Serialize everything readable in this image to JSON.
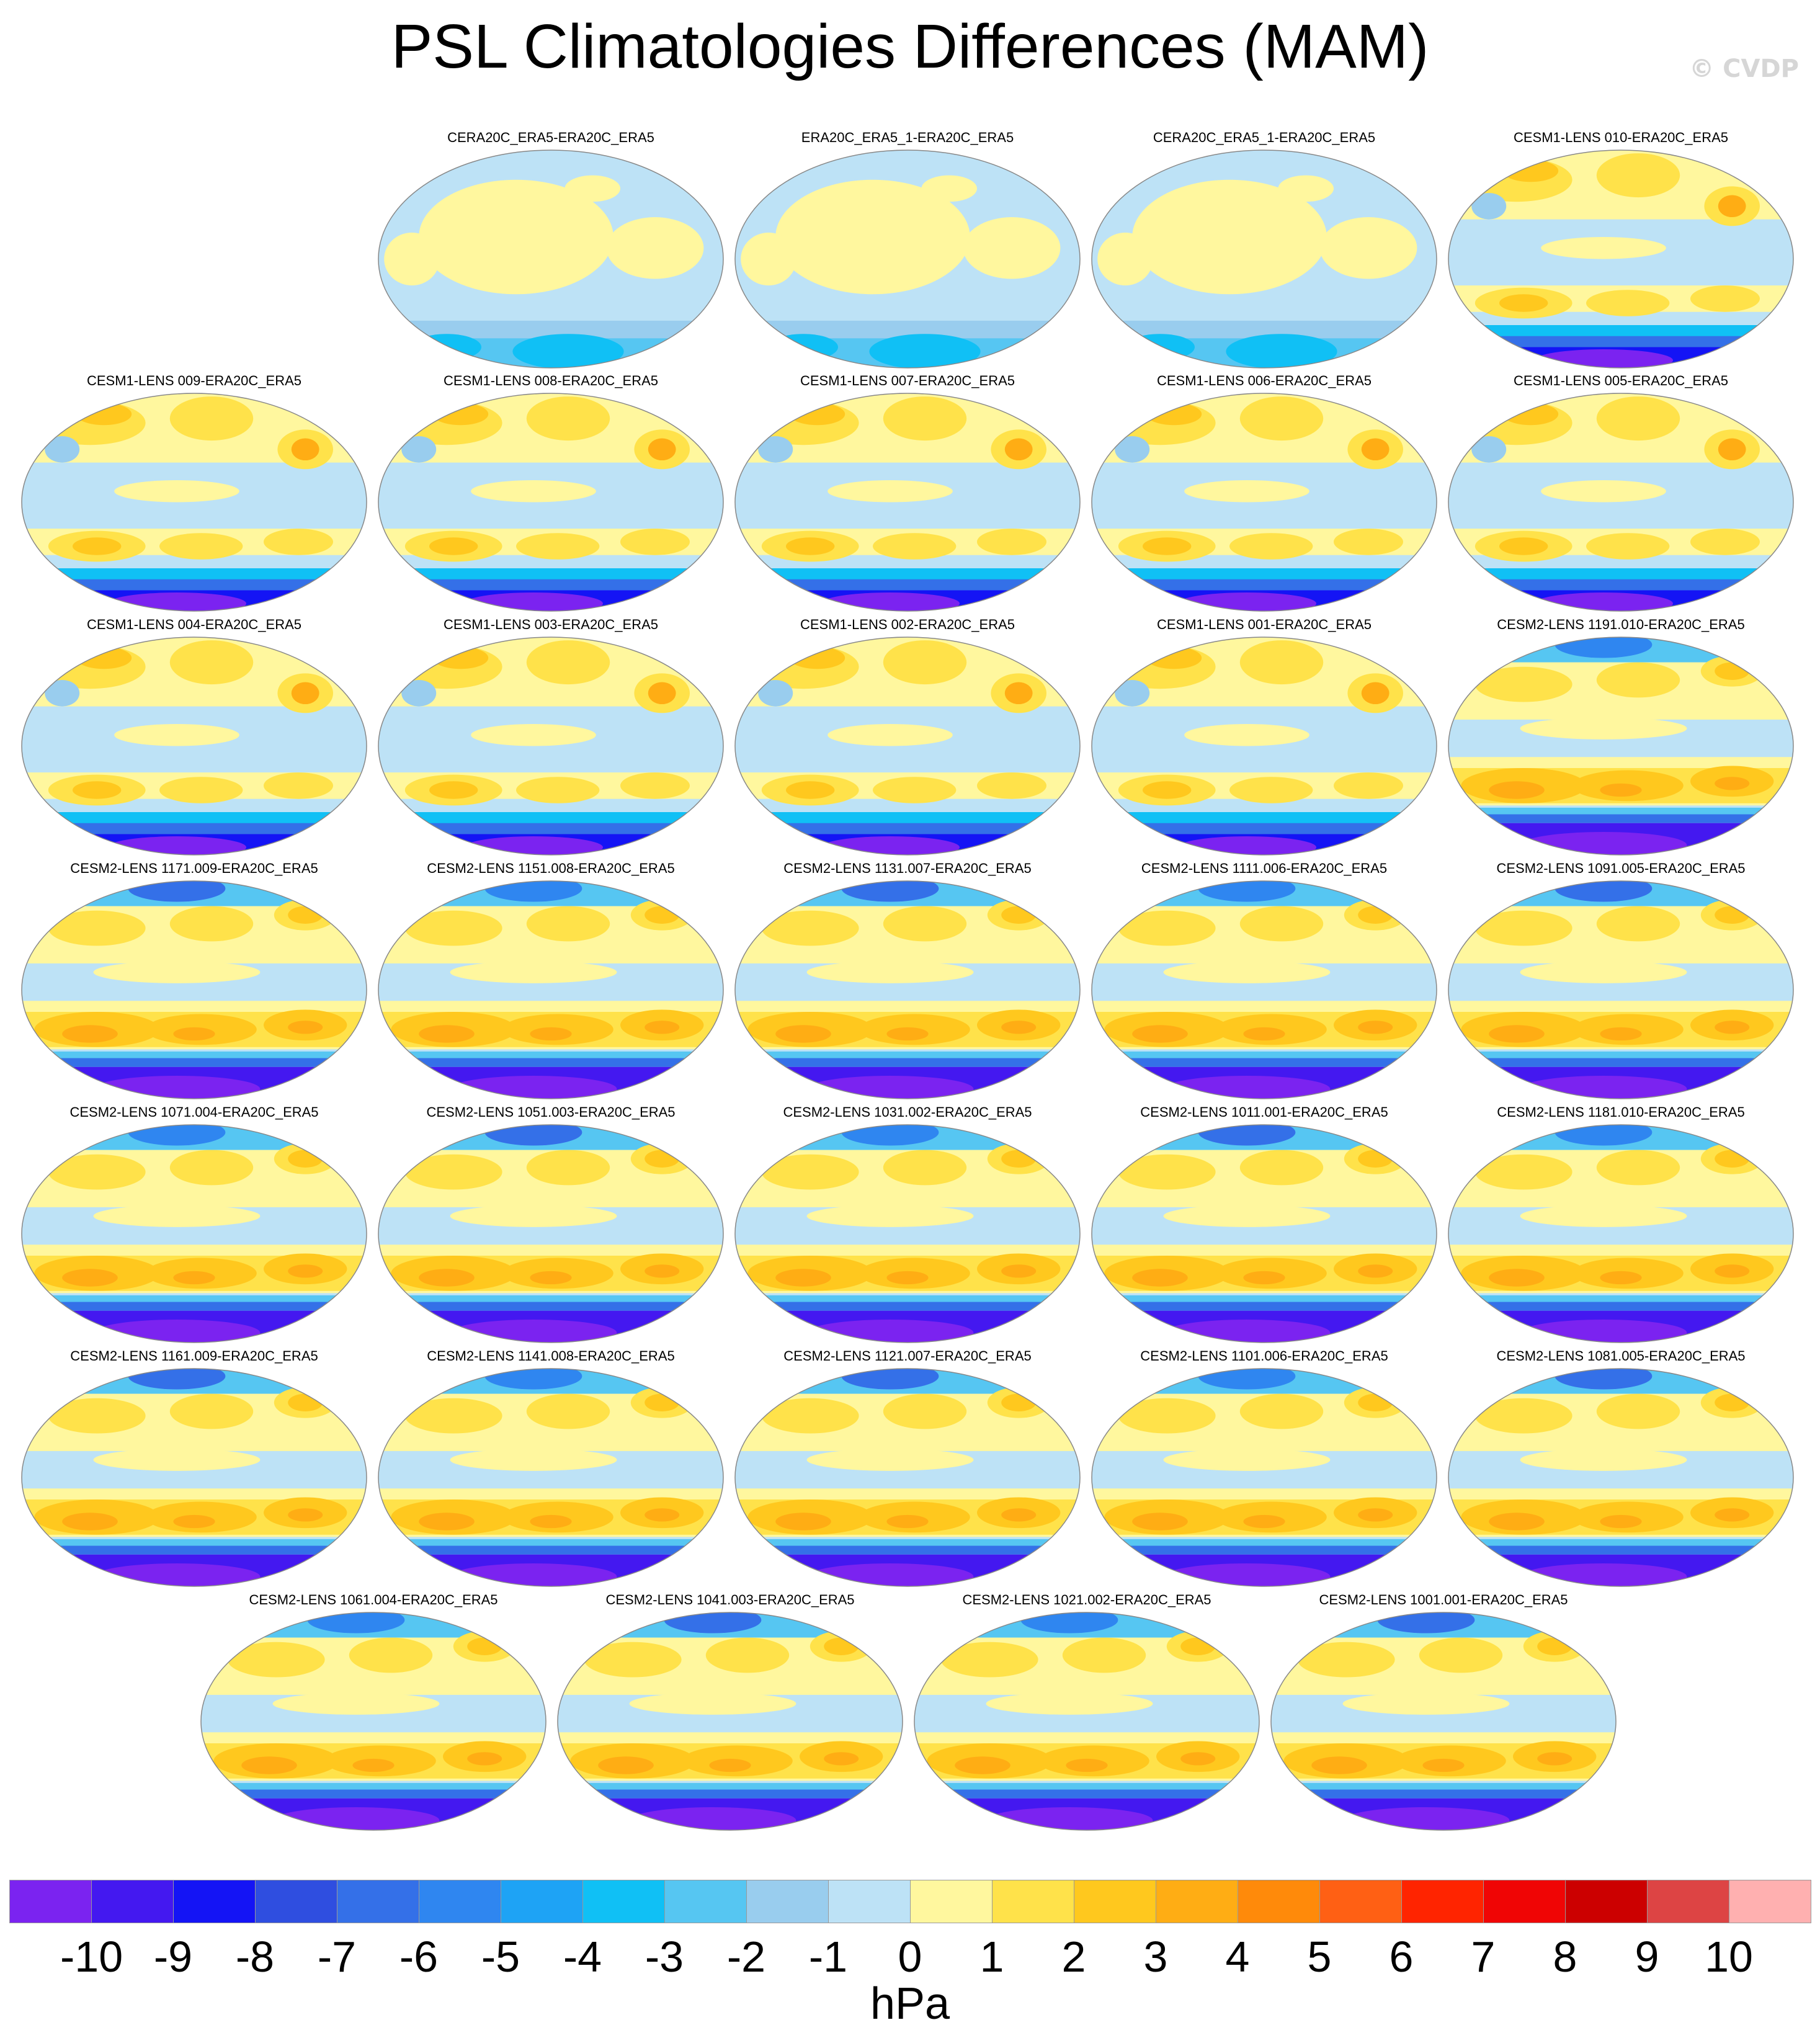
{
  "title": "PSL Climatologies Differences (MAM)",
  "watermark": "© CVDP",
  "panels": [
    {
      "title": "CERA20C_ERA5-ERA20C_ERA5",
      "pattern": "reanalysis"
    },
    {
      "title": "ERA20C_ERA5_1-ERA20C_ERA5",
      "pattern": "reanalysis"
    },
    {
      "title": "CERA20C_ERA5_1-ERA20C_ERA5",
      "pattern": "reanalysis"
    },
    {
      "title": "CESM1-LENS 010-ERA20C_ERA5",
      "pattern": "cesm1"
    },
    {
      "title": "CESM1-LENS 009-ERA20C_ERA5",
      "pattern": "cesm1"
    },
    {
      "title": "CESM1-LENS 008-ERA20C_ERA5",
      "pattern": "cesm1"
    },
    {
      "title": "CESM1-LENS 007-ERA20C_ERA5",
      "pattern": "cesm1"
    },
    {
      "title": "CESM1-LENS 006-ERA20C_ERA5",
      "pattern": "cesm1"
    },
    {
      "title": "CESM1-LENS 005-ERA20C_ERA5",
      "pattern": "cesm1"
    },
    {
      "title": "CESM1-LENS 004-ERA20C_ERA5",
      "pattern": "cesm1"
    },
    {
      "title": "CESM1-LENS 003-ERA20C_ERA5",
      "pattern": "cesm1"
    },
    {
      "title": "CESM1-LENS 002-ERA20C_ERA5",
      "pattern": "cesm1"
    },
    {
      "title": "CESM1-LENS 001-ERA20C_ERA5",
      "pattern": "cesm1"
    },
    {
      "title": "CESM2-LENS 1191.010-ERA20C_ERA5",
      "pattern": "cesm2"
    },
    {
      "title": "CESM2-LENS 1171.009-ERA20C_ERA5",
      "pattern": "cesm2"
    },
    {
      "title": "CESM2-LENS 1151.008-ERA20C_ERA5",
      "pattern": "cesm2"
    },
    {
      "title": "CESM2-LENS 1131.007-ERA20C_ERA5",
      "pattern": "cesm2"
    },
    {
      "title": "CESM2-LENS 1111.006-ERA20C_ERA5",
      "pattern": "cesm2"
    },
    {
      "title": "CESM2-LENS 1091.005-ERA20C_ERA5",
      "pattern": "cesm2"
    },
    {
      "title": "CESM2-LENS 1071.004-ERA20C_ERA5",
      "pattern": "cesm2"
    },
    {
      "title": "CESM2-LENS 1051.003-ERA20C_ERA5",
      "pattern": "cesm2"
    },
    {
      "title": "CESM2-LENS 1031.002-ERA20C_ERA5",
      "pattern": "cesm2"
    },
    {
      "title": "CESM2-LENS 1011.001-ERA20C_ERA5",
      "pattern": "cesm2"
    },
    {
      "title": "CESM2-LENS 1181.010-ERA20C_ERA5",
      "pattern": "cesm2"
    },
    {
      "title": "CESM2-LENS 1161.009-ERA20C_ERA5",
      "pattern": "cesm2"
    },
    {
      "title": "CESM2-LENS 1141.008-ERA20C_ERA5",
      "pattern": "cesm2"
    },
    {
      "title": "CESM2-LENS 1121.007-ERA20C_ERA5",
      "pattern": "cesm2"
    },
    {
      "title": "CESM2-LENS 1101.006-ERA20C_ERA5",
      "pattern": "cesm2"
    },
    {
      "title": "CESM2-LENS 1081.005-ERA20C_ERA5",
      "pattern": "cesm2"
    },
    {
      "title": "CESM2-LENS 1061.004-ERA20C_ERA5",
      "pattern": "cesm2"
    },
    {
      "title": "CESM2-LENS 1041.003-ERA20C_ERA5",
      "pattern": "cesm2"
    },
    {
      "title": "CESM2-LENS 1021.002-ERA20C_ERA5",
      "pattern": "cesm2"
    },
    {
      "title": "CESM2-LENS 1001.001-ERA20C_ERA5",
      "pattern": "cesm2"
    }
  ],
  "colorbar": {
    "colors": [
      "#7b23f0",
      "#4418f0",
      "#1414f5",
      "#2f4ee0",
      "#3470e8",
      "#2f86f0",
      "#1ea3f5",
      "#10c0f5",
      "#56c6f2",
      "#99cdee",
      "#bde2f6",
      "#fff79e",
      "#ffe24a",
      "#ffc81e",
      "#ffad14",
      "#ff8a0a",
      "#ff6014",
      "#ff2400",
      "#f00505",
      "#cc0000",
      "#dd4444",
      "#ffb0b0"
    ],
    "labels": [
      "-10",
      "-9",
      "-8",
      "-7",
      "-6",
      "-5",
      "-4",
      "-3",
      "-2",
      "-1",
      "0",
      "1",
      "2",
      "3",
      "4",
      "5",
      "6",
      "7",
      "8",
      "9",
      "10"
    ],
    "units": "hPa"
  },
  "chart_data": {
    "type": "heatmap",
    "title": "PSL Climatologies Differences (MAM)",
    "units": "hPa",
    "range": [
      -10,
      10
    ],
    "contour_interval": 1,
    "colorbar_levels": [
      -10,
      -9,
      -8,
      -7,
      -6,
      -5,
      -4,
      -3,
      -2,
      -1,
      0,
      1,
      2,
      3,
      4,
      5,
      6,
      7,
      8,
      9,
      10
    ],
    "panel_count": 33
  }
}
